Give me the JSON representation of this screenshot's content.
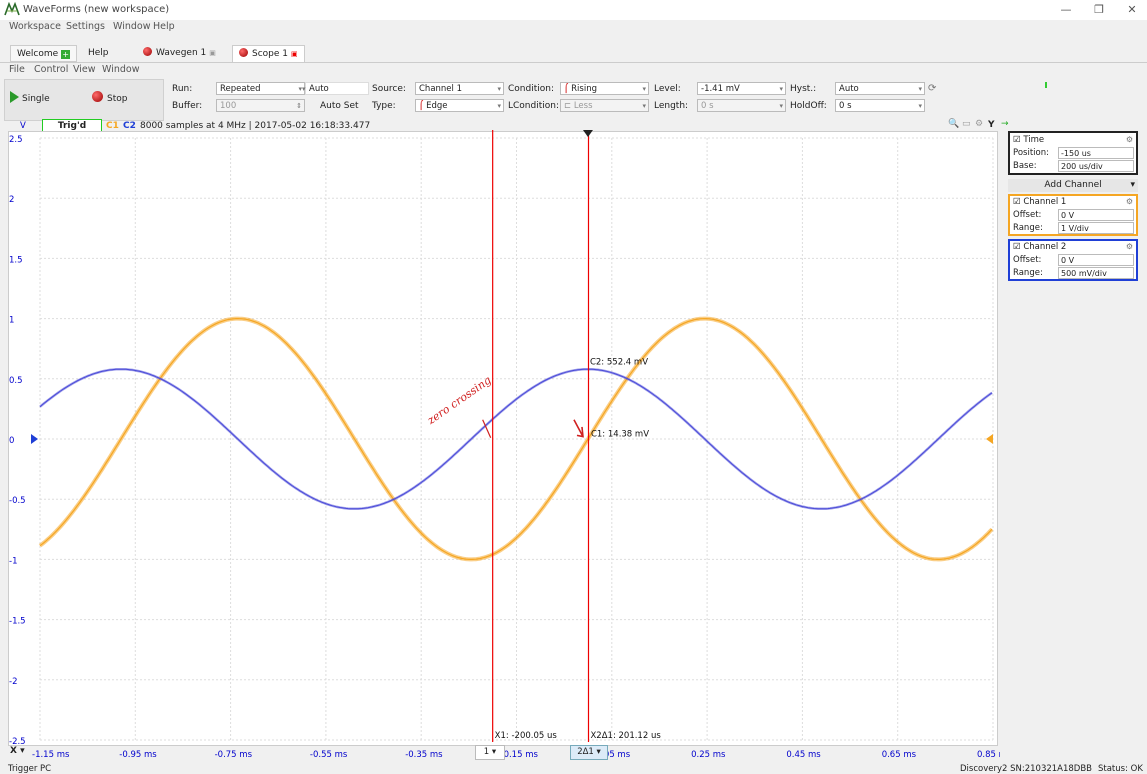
{
  "window": {
    "title": "WaveForms  (new workspace)",
    "min": "—",
    "restore": "❐",
    "close": "✕"
  },
  "menubar": [
    "Workspace",
    "Settings",
    "Window",
    "Help"
  ],
  "tabs": [
    {
      "label": "Welcome",
      "icon": "plus-icon"
    },
    {
      "label": "Help"
    },
    {
      "label": "Wavegen 1",
      "icon": "record-icon"
    },
    {
      "label": "Scope 1",
      "icon": "record-icon"
    }
  ],
  "submenu": [
    "File",
    "Control",
    "View",
    "Window"
  ],
  "toolbar": {
    "single": "Single",
    "stop": "Stop",
    "run_label": "Run:",
    "run_value": "Repeated",
    "run_mode": "Auto",
    "buffer_label": "Buffer:",
    "buffer_value": "100",
    "autoset": "Auto Set",
    "source_label": "Source:",
    "source_value": "Channel 1",
    "type_label": "Type:",
    "type_value": "Edge",
    "condition_label": "Condition:",
    "condition_value": "Rising",
    "lcondition_label": "LCondition:",
    "lcondition_value": "Less",
    "level_label": "Level:",
    "level_value": "-1.41 mV",
    "length_label": "Length:",
    "length_value": "0 s",
    "hyst_label": "Hyst.:",
    "hyst_value": "Auto",
    "holdoff_label": "HoldOff:",
    "holdoff_value": "0 s"
  },
  "plot_header": {
    "v": "V",
    "trig": "Trig'd",
    "c1": "C1",
    "c2": "C2",
    "info": "8000 samples at 4 MHz | 2017-05-02 16:18:33.477",
    "y": "Y"
  },
  "chart_data": {
    "type": "line",
    "x_unit": "ms",
    "xlim": [
      -1.15,
      0.85
    ],
    "ylim": [
      -2.5,
      2.5
    ],
    "yticks": [
      "2.5",
      "2",
      "1.5",
      "1",
      "0.5",
      "0",
      "-0.5",
      "-1",
      "-1.5",
      "-2",
      "-2.5"
    ],
    "xticks": [
      "-1.15 ms",
      "-0.95 ms",
      "-0.75 ms",
      "-0.55 ms",
      "-0.35 ms",
      "-0.15 ms",
      "0.05 ms",
      "0.25 ms",
      "0.45 ms",
      "0.65 ms",
      "0.85 ms"
    ],
    "series": [
      {
        "name": "C1",
        "color": "#f5a623",
        "amplitude": 1.0,
        "period_ms": 0.98,
        "phase_zero_ms": 0.0
      },
      {
        "name": "C2",
        "color": "#4a4ad8",
        "amplitude": 0.58,
        "period_ms": 0.98,
        "phase_peak_ms": 0.0
      }
    ],
    "cursors": [
      {
        "label": "X1: -200.05 us",
        "x_ms": -0.2,
        "color": "#e00"
      },
      {
        "label": "X2Δ1: 201.12 us",
        "x_ms": 0.0011,
        "color": "#e00"
      }
    ],
    "annotations": [
      {
        "label": "C2: 552.4 mV"
      },
      {
        "label": "C1: 14.38 mV"
      },
      {
        "label": "zero crossing",
        "handwritten": true
      }
    ]
  },
  "xbar": {
    "x": "X",
    "c1": "1",
    "c2": "2Δ1"
  },
  "right_panel": {
    "time": {
      "title": "Time",
      "pos_label": "Position:",
      "pos_value": "-150 us",
      "base_label": "Base:",
      "base_value": "200 us/div"
    },
    "add_channel": "Add Channel",
    "ch1": {
      "title": "Channel 1",
      "off_label": "Offset:",
      "off_value": "0 V",
      "range_label": "Range:",
      "range_value": "1 V/div",
      "color": "#f5a623"
    },
    "ch2": {
      "title": "Channel 2",
      "off_label": "Offset:",
      "off_value": "0 V",
      "range_label": "Range:",
      "range_value": "500 mV/div",
      "color": "#1f3fd6"
    }
  },
  "status": {
    "left": "Trigger PC",
    "device": "Discovery2 SN:210321A18DBB",
    "status": "Status: OK"
  }
}
